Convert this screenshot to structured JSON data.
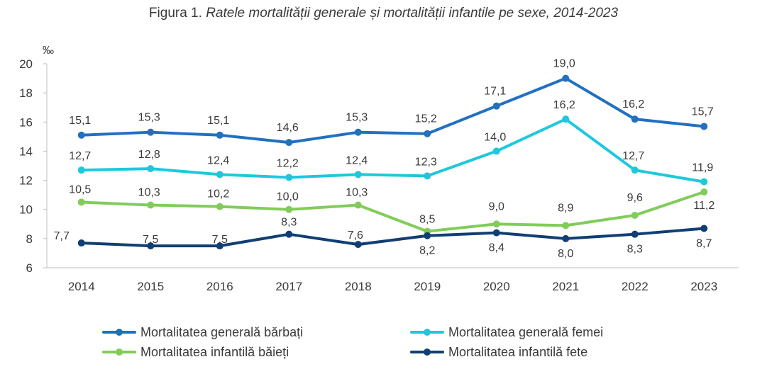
{
  "title": {
    "prefix": "Figura 1.",
    "main": "Ratele mortalității generale și mortalității infantile pe sexe, 2014-2023"
  },
  "chart_data": {
    "type": "line",
    "title": "Figura 1. Ratele mortalității generale și mortalității infantile pe sexe, 2014-2023",
    "xlabel": "",
    "ylabel": "‰",
    "ylim": [
      6,
      20
    ],
    "yticks": [
      6,
      8,
      10,
      12,
      14,
      16,
      18,
      20
    ],
    "categories": [
      "2014",
      "2015",
      "2016",
      "2017",
      "2018",
      "2019",
      "2020",
      "2021",
      "2022",
      "2023"
    ],
    "legend_position": "bottom",
    "grid": false,
    "series": [
      {
        "name": "Mortalitatea generală bărbați",
        "color": "#2270c0",
        "values": [
          15.1,
          15.3,
          15.1,
          14.6,
          15.3,
          15.2,
          17.1,
          19.0,
          16.2,
          15.7
        ],
        "labels": [
          "15,1",
          "15,3",
          "15,1",
          "14,6",
          "15,3",
          "15,2",
          "17,1",
          "19,0",
          "16,2",
          "15,7"
        ]
      },
      {
        "name": "Mortalitatea generală femei",
        "color": "#1ec8dc",
        "values": [
          12.7,
          12.8,
          12.4,
          12.2,
          12.4,
          12.3,
          14.0,
          16.2,
          12.7,
          11.9
        ],
        "labels": [
          "12,7",
          "12,8",
          "12,4",
          "12,2",
          "12,4",
          "12,3",
          "14,0",
          "16,2",
          "12,7",
          "11,9"
        ]
      },
      {
        "name": "Mortalitatea infantilă băieți",
        "color": "#82cc5a",
        "values": [
          10.5,
          10.3,
          10.2,
          10.0,
          10.3,
          8.5,
          9.0,
          8.9,
          9.6,
          11.2
        ],
        "labels": [
          "10,5",
          "10,3",
          "10,2",
          "10,0",
          "10,3",
          "8,5",
          "9,0",
          "8,9",
          "9,6",
          "11,2"
        ]
      },
      {
        "name": "Mortalitatea infantilă fete",
        "color": "#113e74",
        "values": [
          7.7,
          7.5,
          7.5,
          8.3,
          7.6,
          8.2,
          8.4,
          8.0,
          8.3,
          8.7
        ],
        "labels": [
          "7,7",
          "7,5",
          "7,5",
          "8,3",
          "7,6",
          "8,2",
          "8,4",
          "8,0",
          "8,3",
          "8,7"
        ]
      }
    ]
  }
}
